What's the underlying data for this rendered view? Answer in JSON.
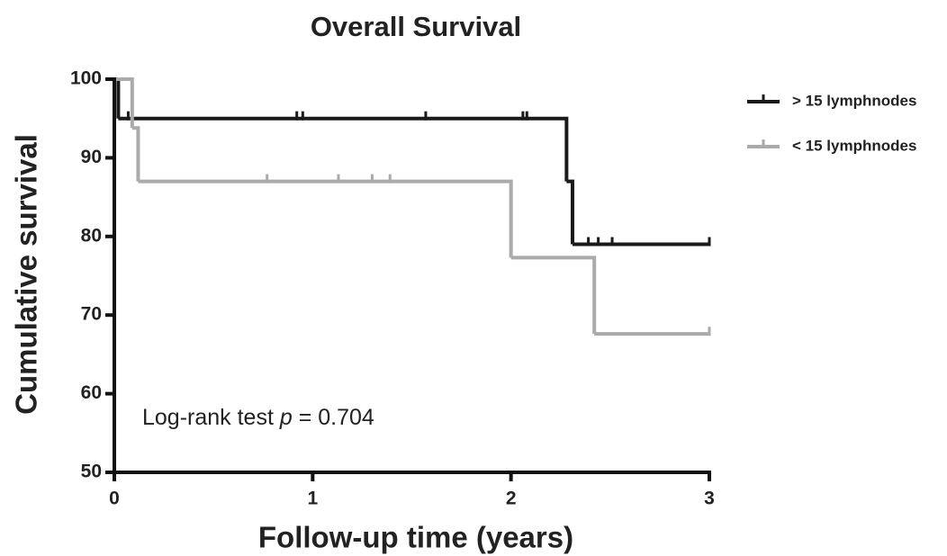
{
  "chart_data": {
    "type": "step",
    "title": "Overall Survival",
    "x_label": "Follow-up time (years)",
    "y_label": "Cumulative survival",
    "annotation": {
      "before": "Log-rank test ",
      "variable": "p",
      "after": " = 0.704"
    },
    "xlim": [
      0,
      3
    ],
    "xticks": [
      0,
      1,
      2,
      3
    ],
    "ylim": [
      50,
      100
    ],
    "yticks": [
      50,
      60,
      70,
      80,
      90,
      100
    ],
    "grid": false,
    "legend": "right",
    "series": [
      {
        "name": "> 15 lymphnodes",
        "color": "#1a1a1a",
        "x": [
          0,
          0.02,
          2.28,
          2.31,
          3
        ],
        "values": [
          100,
          95,
          87,
          79,
          79
        ],
        "censor_times": [
          0.07,
          0.92,
          0.95,
          1.57,
          2.06,
          2.08,
          2.39,
          2.44,
          2.51,
          3.0
        ],
        "censor_values": [
          95,
          95,
          95,
          95,
          95,
          95,
          79,
          79,
          79,
          79
        ]
      },
      {
        "name": "< 15 lymphnodes",
        "color": "#aaaaaa",
        "x": [
          0,
          0.09,
          0.12,
          2.0,
          2.42,
          3
        ],
        "values": [
          100,
          93.8,
          87,
          77.3,
          67.6,
          67.6
        ],
        "censor_times": [
          0.77,
          1.13,
          1.3,
          1.39,
          3.0
        ],
        "censor_values": [
          87,
          87,
          87,
          87,
          67.6
        ]
      }
    ]
  }
}
